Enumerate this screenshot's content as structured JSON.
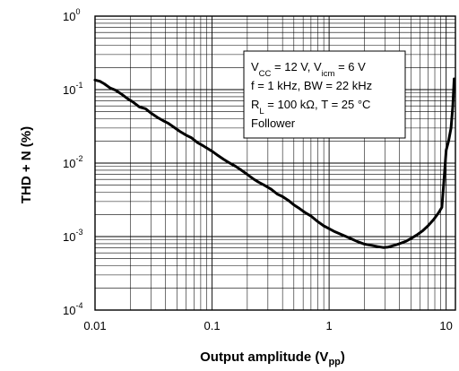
{
  "chart_data": {
    "type": "line",
    "title": "",
    "xlabel": {
      "main": "Output amplitude (V",
      "sub": "pp",
      "tail": ")"
    },
    "ylabel": "THD + N (%)",
    "x_scale": "log",
    "y_scale": "log",
    "xlim": [
      0.01,
      12
    ],
    "ylim": [
      0.0001,
      1
    ],
    "grid": true,
    "x_ticks": [
      {
        "value": 0.01,
        "label": "0.01"
      },
      {
        "value": 0.1,
        "label": "0.1"
      },
      {
        "value": 1,
        "label": "1"
      },
      {
        "value": 10,
        "label": "10"
      }
    ],
    "y_ticks": [
      {
        "value": 1,
        "base": "10",
        "exp": "0"
      },
      {
        "value": 0.1,
        "base": "10",
        "exp": "-1"
      },
      {
        "value": 0.01,
        "base": "10",
        "exp": "-2"
      },
      {
        "value": 0.001,
        "base": "10",
        "exp": "-3"
      },
      {
        "value": 0.0001,
        "base": "10",
        "exp": "-4"
      }
    ],
    "annotation": [
      [
        {
          "t": "V"
        },
        {
          "t": "CC",
          "sub": true
        },
        {
          "t": " = 12 V, V"
        },
        {
          "t": "icm",
          "sub": true
        },
        {
          "t": " = 6 V"
        }
      ],
      [
        {
          "t": "f = 1 kHz, BW = 22 kHz"
        }
      ],
      [
        {
          "t": "R"
        },
        {
          "t": "L",
          "sub": true
        },
        {
          "t": " = 100 kΩ, T = 25 °C"
        }
      ],
      [
        {
          "t": "Follower"
        }
      ]
    ],
    "series": [
      {
        "points": [
          [
            0.01,
            0.135
          ],
          [
            0.011,
            0.13
          ],
          [
            0.012,
            0.12
          ],
          [
            0.0135,
            0.105
          ],
          [
            0.015,
            0.098
          ],
          [
            0.017,
            0.086
          ],
          [
            0.019,
            0.075
          ],
          [
            0.021,
            0.068
          ],
          [
            0.024,
            0.058
          ],
          [
            0.027,
            0.055
          ],
          [
            0.03,
            0.048
          ],
          [
            0.034,
            0.042
          ],
          [
            0.038,
            0.038
          ],
          [
            0.042,
            0.035
          ],
          [
            0.047,
            0.031
          ],
          [
            0.053,
            0.027
          ],
          [
            0.06,
            0.024
          ],
          [
            0.067,
            0.022
          ],
          [
            0.075,
            0.019
          ],
          [
            0.085,
            0.017
          ],
          [
            0.1,
            0.0145
          ],
          [
            0.11,
            0.013
          ],
          [
            0.125,
            0.0113
          ],
          [
            0.14,
            0.0101
          ],
          [
            0.16,
            0.009
          ],
          [
            0.18,
            0.0079
          ],
          [
            0.2,
            0.007
          ],
          [
            0.225,
            0.0061
          ],
          [
            0.25,
            0.0055
          ],
          [
            0.28,
            0.005
          ],
          [
            0.32,
            0.0044
          ],
          [
            0.36,
            0.0038
          ],
          [
            0.4,
            0.0035
          ],
          [
            0.45,
            0.0031
          ],
          [
            0.5,
            0.0027
          ],
          [
            0.56,
            0.0024
          ],
          [
            0.63,
            0.0021
          ],
          [
            0.7,
            0.0019
          ],
          [
            0.8,
            0.0016
          ],
          [
            0.9,
            0.0014
          ],
          [
            1.0,
            0.00128
          ],
          [
            1.1,
            0.00118
          ],
          [
            1.25,
            0.00108
          ],
          [
            1.4,
            0.001
          ],
          [
            1.6,
            0.00091
          ],
          [
            1.8,
            0.00084
          ],
          [
            2.0,
            0.00079
          ],
          [
            2.3,
            0.00076
          ],
          [
            2.6,
            0.00073
          ],
          [
            2.9,
            0.00071
          ],
          [
            3.2,
            0.00072
          ],
          [
            3.6,
            0.00076
          ],
          [
            4.0,
            0.0008
          ],
          [
            4.5,
            0.00086
          ],
          [
            5.0,
            0.00094
          ],
          [
            5.6,
            0.00105
          ],
          [
            6.3,
            0.0012
          ],
          [
            7.0,
            0.0014
          ],
          [
            7.8,
            0.0017
          ],
          [
            8.6,
            0.0021
          ],
          [
            9.2,
            0.0025
          ],
          [
            9.6,
            0.006
          ],
          [
            10.0,
            0.015
          ],
          [
            10.5,
            0.02
          ],
          [
            11.0,
            0.03
          ],
          [
            11.4,
            0.06
          ],
          [
            11.7,
            0.14
          ]
        ]
      }
    ]
  }
}
